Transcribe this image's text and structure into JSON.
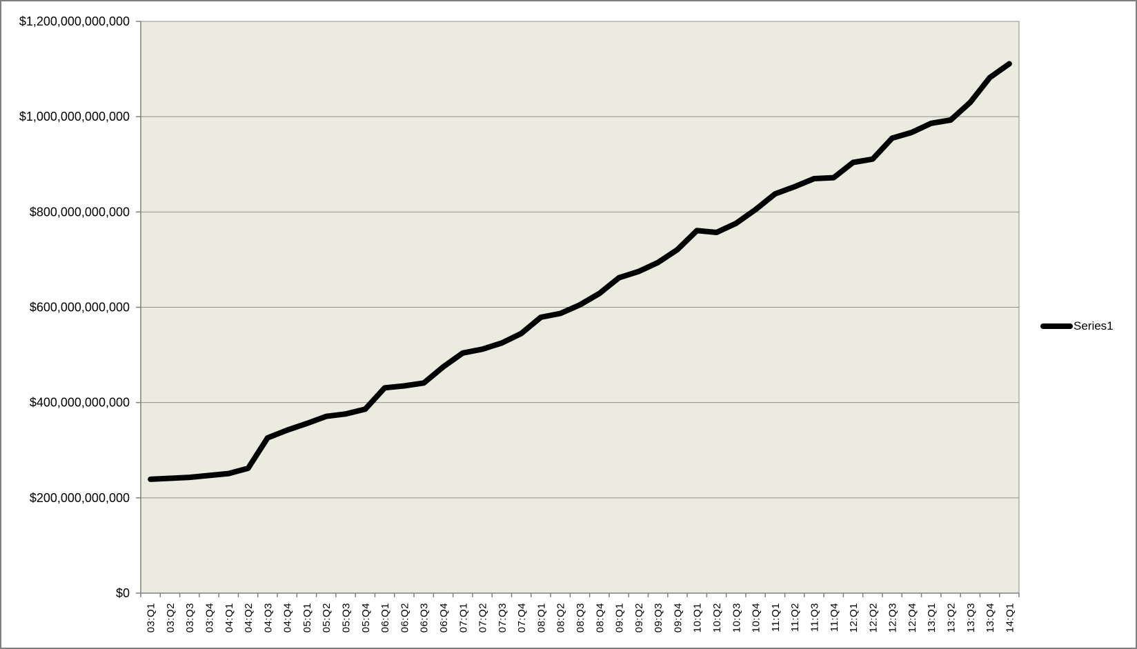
{
  "chart_data": {
    "type": "line",
    "title": "",
    "xlabel": "",
    "ylabel": "",
    "grid": "horizontal",
    "legend_position": "right",
    "ylim": [
      0,
      1200000000000
    ],
    "y_tick_step": 200000000000,
    "y_tick_labels": [
      "$1,200,000,000,000",
      "$1,000,000,000,000",
      "$800,000,000,000",
      "$600,000,000,000",
      "$400,000,000,000",
      "$200,000,000,000",
      "$0"
    ],
    "categories": [
      "03:Q1",
      "03:Q2",
      "03:Q3",
      "03:Q4",
      "04:Q1",
      "04:Q2",
      "04:Q3",
      "04:Q4",
      "05:Q1",
      "05:Q2",
      "05:Q3",
      "05:Q4",
      "06:Q1",
      "06:Q2",
      "06:Q3",
      "06:Q4",
      "07:Q1",
      "07:Q2",
      "07:Q3",
      "07:Q4",
      "08:Q1",
      "08:Q2",
      "08:Q3",
      "08:Q4",
      "09:Q1",
      "09:Q2",
      "09:Q3",
      "09:Q4",
      "10:Q1",
      "10:Q2",
      "10:Q3",
      "10:Q4",
      "11:Q1",
      "11:Q2",
      "11:Q3",
      "11:Q4",
      "12:Q1",
      "12:Q2",
      "12:Q3",
      "12:Q4",
      "13:Q1",
      "13:Q2",
      "13:Q3",
      "13:Q4",
      "14:Q1"
    ],
    "series": [
      {
        "name": "Series1",
        "color": "#000000",
        "values": [
          239000000000,
          241000000000,
          243000000000,
          247000000000,
          251000000000,
          262000000000,
          326000000000,
          342000000000,
          356000000000,
          371000000000,
          376000000000,
          386000000000,
          431000000000,
          435000000000,
          441000000000,
          475000000000,
          504000000000,
          512000000000,
          525000000000,
          545000000000,
          579000000000,
          587000000000,
          605000000000,
          629000000000,
          662000000000,
          675000000000,
          694000000000,
          721000000000,
          761000000000,
          757000000000,
          776000000000,
          805000000000,
          838000000000,
          853000000000,
          870000000000,
          872000000000,
          904000000000,
          911000000000,
          955000000000,
          967000000000,
          986000000000,
          993000000000,
          1030000000000,
          1082000000000,
          1111000000000
        ]
      }
    ],
    "colors": {
      "plot_bg": "#ECEBE0",
      "gridline": "#8E8E8A",
      "axis": "#7F7F7F",
      "tick_label": "#000000",
      "outer_border": "#7F7F7F",
      "page_bg": "#FFFFFF"
    }
  }
}
